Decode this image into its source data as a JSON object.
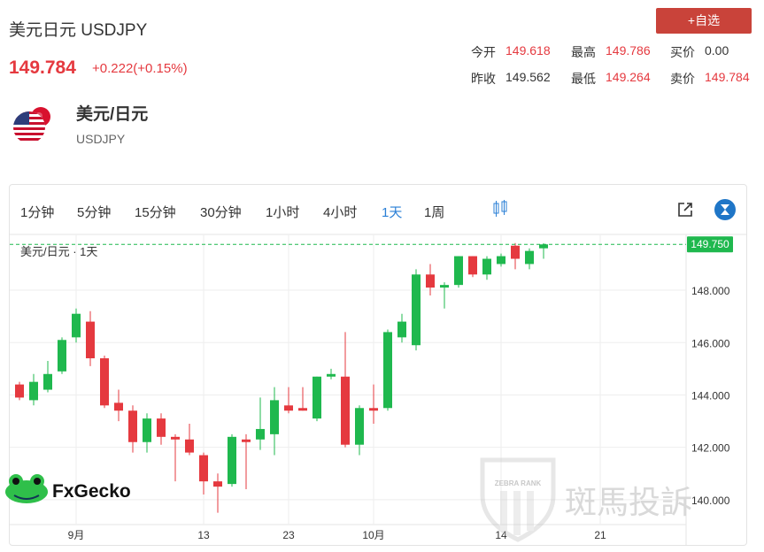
{
  "header": {
    "title": "美元日元 USDJPY",
    "price": "149.784",
    "change": "+0.222(+0.15%)",
    "button": "+自选",
    "stats": [
      {
        "label": "今开",
        "value": "149.618"
      },
      {
        "label": "最高",
        "value": "149.786"
      },
      {
        "label": "买价",
        "value": "0.00"
      },
      {
        "label": "昨收",
        "value": "149.562"
      },
      {
        "label": "最低",
        "value": "149.264"
      },
      {
        "label": "卖价",
        "value": "149.784"
      }
    ],
    "asset_name": "美元/日元",
    "asset_code": "USDJPY"
  },
  "toolbar": {
    "intervals": [
      "1分钟",
      "5分钟",
      "15分钟",
      "30分钟",
      "1小时",
      "4小时",
      "1天",
      "1周"
    ],
    "active": 6
  },
  "watermarks": {
    "brand": "FxGecko",
    "zebra": "斑馬投訴",
    "zebra_rank": "ZEBRA RANK"
  },
  "chart_data": {
    "type": "candlestick",
    "legend": "美元/日元 · 1天",
    "categories": [
      null,
      null,
      null,
      null,
      "9月",
      null,
      null,
      null,
      null,
      null,
      null,
      null,
      null,
      "13",
      null,
      null,
      null,
      null,
      null,
      "23",
      null,
      null,
      null,
      null,
      null,
      "10月",
      null,
      null,
      null,
      null,
      null,
      null,
      null,
      null,
      "14",
      null,
      null,
      null,
      null,
      null,
      null,
      "21",
      null,
      null,
      null,
      null,
      null
    ],
    "open": [
      144.4,
      143.8,
      144.2,
      144.9,
      146.2,
      146.8,
      145.4,
      143.7,
      143.4,
      142.2,
      143.1,
      142.4,
      142.3,
      141.7,
      140.7,
      140.6,
      142.3,
      142.3,
      142.5,
      143.6,
      143.5,
      143.1,
      144.7,
      144.7,
      142.1,
      143.5,
      143.5,
      146.2,
      145.9,
      148.6,
      148.1,
      148.2,
      149.3,
      148.6,
      149.0,
      149.7,
      149.0,
      149.6,
      null,
      null,
      null,
      null,
      null,
      null,
      null,
      null,
      null
    ],
    "high": [
      144.5,
      144.8,
      145.3,
      146.2,
      147.3,
      147.2,
      145.5,
      144.2,
      143.6,
      143.3,
      143.3,
      142.5,
      142.9,
      141.8,
      141.0,
      142.5,
      142.5,
      143.9,
      144.3,
      144.3,
      144.3,
      144.7,
      145.0,
      146.4,
      143.6,
      144.4,
      146.5,
      147.1,
      148.8,
      149.0,
      148.3,
      149.3,
      149.3,
      149.3,
      149.4,
      149.8,
      149.6,
      149.79,
      null,
      null,
      null,
      null,
      null,
      null,
      null,
      null,
      null
    ],
    "low": [
      143.8,
      143.6,
      144.1,
      144.8,
      146.0,
      145.1,
      143.5,
      143.0,
      141.8,
      141.8,
      142.1,
      140.7,
      141.7,
      140.2,
      139.5,
      140.5,
      140.4,
      141.9,
      141.7,
      143.3,
      143.4,
      143.0,
      144.6,
      142.0,
      141.7,
      142.9,
      143.4,
      146.0,
      145.7,
      147.8,
      147.3,
      148.1,
      148.5,
      148.4,
      148.9,
      148.8,
      148.8,
      149.2,
      null,
      null,
      null,
      null,
      null,
      null,
      null,
      null,
      null
    ],
    "close": [
      143.9,
      144.5,
      144.8,
      146.1,
      147.1,
      145.4,
      143.6,
      143.4,
      142.2,
      143.1,
      142.4,
      142.3,
      141.8,
      140.7,
      140.5,
      142.4,
      142.2,
      142.7,
      143.8,
      143.4,
      143.4,
      144.7,
      144.8,
      142.1,
      143.5,
      143.4,
      146.4,
      146.8,
      148.6,
      148.1,
      148.2,
      149.3,
      148.6,
      149.2,
      149.3,
      149.2,
      149.5,
      149.75,
      null,
      null,
      null,
      null,
      null,
      null,
      null,
      null,
      null
    ],
    "up_color": "#1fb84e",
    "down_color": "#e5393f",
    "ylim": [
      139.05,
      150.13
    ],
    "yticks": [
      {
        "value": 140,
        "label": "140.000"
      },
      {
        "value": 142,
        "label": "142.000"
      },
      {
        "value": 144,
        "label": "144.000"
      },
      {
        "value": 146,
        "label": "146.000"
      },
      {
        "value": 148,
        "label": "148.000"
      }
    ],
    "last_price": {
      "value": 149.75,
      "label": "149.750"
    },
    "grid": true
  }
}
